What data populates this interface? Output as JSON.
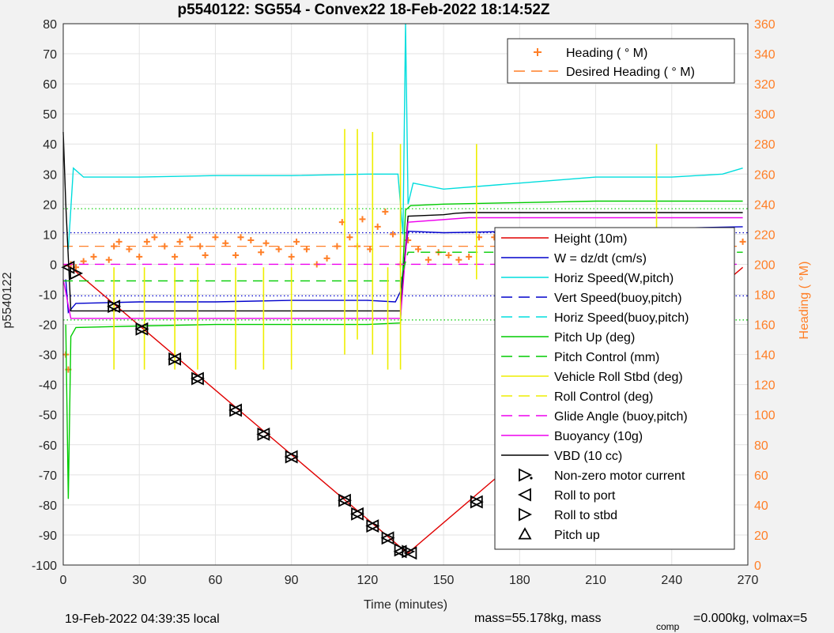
{
  "chart_data": {
    "type": "line",
    "title": "p5540122: SG554 - Convex22 18-Feb-2022 18:14:52Z",
    "xlabel": "Time (minutes)",
    "ylabel": "p5540122",
    "y2label": "Heading (  °M)",
    "xlim": [
      0,
      270
    ],
    "ylim": [
      -100,
      80
    ],
    "y2lim": [
      0,
      360
    ],
    "xticks": [
      "0",
      "30",
      "60",
      "90",
      "120",
      "150",
      "180",
      "210",
      "240",
      "270"
    ],
    "yticks": [
      "80",
      "70",
      "60",
      "50",
      "40",
      "30",
      "20",
      "10",
      "0",
      "-10",
      "-20",
      "-30",
      "-40",
      "-50",
      "-60",
      "-70",
      "-80",
      "-90",
      "-100"
    ],
    "y2ticks": [
      "360",
      "340",
      "320",
      "300",
      "280",
      "260",
      "240",
      "220",
      "200",
      "180",
      "160",
      "140",
      "120",
      "100",
      "80",
      "60",
      "40",
      "20",
      "0"
    ],
    "grid": true,
    "footer_left": "19-Feb-2022 04:39:35 local",
    "footer_right_a": "mass=55.178kg, mass",
    "footer_right_sub": "comp",
    "footer_right_b": "=0.000kg, volmax=5",
    "legend_top": [
      {
        "label": "Heading (  ° M)",
        "color": "#ff7f27",
        "style": "plus"
      },
      {
        "label": "Desired Heading (    ° M)",
        "color": "#ff7f27",
        "style": "dash"
      }
    ],
    "legend_main": [
      {
        "label": "Height (10m)",
        "color": "#e00000",
        "style": "solid"
      },
      {
        "label": "W = dz/dt (cm/s)",
        "color": "#0000cc",
        "style": "solid"
      },
      {
        "label": "Horiz Speed(W,pitch)",
        "color": "#00dddd",
        "style": "solid"
      },
      {
        "label": "Vert Speed(buoy,pitch)",
        "color": "#0000cc",
        "style": "dash"
      },
      {
        "label": "Horiz Speed(buoy,pitch)",
        "color": "#00dddd",
        "style": "dash"
      },
      {
        "label": "Pitch Up (deg)",
        "color": "#00cc00",
        "style": "solid"
      },
      {
        "label": "Pitch Control (mm)",
        "color": "#00cc00",
        "style": "dash"
      },
      {
        "label": "Vehicle Roll Stbd (deg)",
        "color": "#eeee00",
        "style": "solid"
      },
      {
        "label": "Roll Control (deg)",
        "color": "#eeee00",
        "style": "dash"
      },
      {
        "label": "Glide Angle (buoy,pitch)",
        "color": "#ee00ee",
        "style": "dash"
      },
      {
        "label": "Buoyancy (10g)",
        "color": "#ee00ee",
        "style": "solid"
      },
      {
        "label": "VBD (10 cc)",
        "color": "#000000",
        "style": "solid"
      },
      {
        "label": "Non-zero motor current",
        "color": "#000000",
        "style": "hexstar"
      },
      {
        "label": "Roll to port",
        "color": "#000000",
        "style": "tri-left"
      },
      {
        "label": "Roll to stbd",
        "color": "#000000",
        "style": "tri-right"
      },
      {
        "label": "Pitch up",
        "color": "#000000",
        "style": "tri-up"
      }
    ],
    "series": [
      {
        "key": "height",
        "color": "#e00000",
        "x": [
          0,
          3,
          135,
          136,
          268
        ],
        "y": [
          0,
          -1,
          -95.5,
          -96,
          -1
        ]
      },
      {
        "key": "w",
        "color": "#0000cc",
        "x": [
          1,
          2,
          5,
          30,
          60,
          90,
          110,
          120,
          131,
          133,
          136,
          150,
          180,
          210,
          240,
          268
        ],
        "y": [
          -5,
          -16,
          -13,
          -12.5,
          -12.5,
          -12,
          -12,
          -12,
          -12.5,
          -9,
          11,
          10.5,
          11,
          11.5,
          12,
          12.5
        ]
      },
      {
        "key": "horiz_speed",
        "color": "#00dddd",
        "x": [
          2,
          4,
          8,
          30,
          60,
          90,
          120,
          132,
          134,
          135,
          136,
          138,
          150,
          180,
          210,
          240,
          260,
          268
        ],
        "y": [
          5,
          32,
          29,
          29,
          29.5,
          29.5,
          30,
          30,
          10,
          80,
          20,
          27,
          25,
          27,
          29,
          29,
          30,
          32
        ]
      },
      {
        "key": "pitch_up",
        "color": "#00cc00",
        "x": [
          1,
          2,
          3,
          5,
          30,
          60,
          90,
          120,
          133,
          135,
          137,
          150,
          180,
          210,
          240,
          268
        ],
        "y": [
          -20,
          -78,
          -24,
          -21,
          -20.5,
          -20,
          -20,
          -20,
          -19.5,
          18,
          19.5,
          20,
          20.5,
          21,
          21,
          21
        ]
      },
      {
        "key": "vbd",
        "color": "#000000",
        "x": [
          0,
          1,
          3,
          133,
          136,
          150,
          155,
          160,
          180,
          268
        ],
        "y": [
          44,
          20,
          -15.5,
          -15.5,
          16,
          16.5,
          17,
          17.2,
          17.2,
          17.2
        ]
      },
      {
        "key": "buoyancy",
        "color": "#ee00ee",
        "x": [
          0,
          3,
          133,
          136,
          160,
          268
        ],
        "y": [
          -5,
          -18,
          -18,
          14,
          15.5,
          15.5
        ]
      },
      {
        "key": "glide_angle",
        "color": "#ee00ee",
        "dash": true,
        "x": [
          0,
          268
        ],
        "y": [
          0,
          0
        ]
      },
      {
        "key": "pitch_control",
        "color": "#00cc00",
        "dash": true,
        "x": [
          0,
          133,
          136,
          268
        ],
        "y": [
          -5.5,
          -5.5,
          4,
          4
        ]
      }
    ],
    "reference_lines": [
      {
        "y": 18.5,
        "color": "#00cc00"
      },
      {
        "y": -18.5,
        "color": "#00cc00"
      },
      {
        "y": 10.5,
        "color": "#0000cc"
      },
      {
        "y": -10.5,
        "color": "#0000cc"
      }
    ],
    "roll_spikes": {
      "color": "#eeee00",
      "x": [
        20,
        32,
        44,
        53,
        68,
        79,
        90,
        111,
        116,
        122,
        128,
        133,
        163,
        179,
        234
      ],
      "y_top": [
        -1,
        -1,
        -1,
        -1,
        -1,
        -1,
        -1,
        45,
        45,
        44,
        -1,
        40,
        40,
        -1,
        40
      ],
      "y_bottom": [
        -35,
        -35,
        -35,
        -35,
        -35,
        -35,
        -35,
        -30,
        -25,
        -30,
        -35,
        -35,
        -5,
        -20,
        -5
      ]
    },
    "heading_points": {
      "color": "#ff7f27",
      "x": [
        1,
        2,
        3,
        5,
        8,
        12,
        18,
        20,
        22,
        26,
        30,
        33,
        36,
        40,
        44,
        46,
        50,
        54,
        56,
        60,
        64,
        68,
        70,
        74,
        78,
        80,
        85,
        90,
        92,
        96,
        100,
        104,
        108,
        110,
        113,
        116,
        118,
        121,
        124,
        127,
        130,
        133,
        136,
        140,
        144,
        148,
        152,
        156,
        160,
        164,
        170,
        180,
        190,
        200,
        210,
        220,
        230,
        234,
        240,
        250,
        260,
        268
      ],
      "y": [
        140,
        130,
        200,
        198,
        202,
        205,
        203,
        212,
        215,
        210,
        205,
        215,
        218,
        212,
        205,
        215,
        218,
        212,
        206,
        218,
        214,
        206,
        218,
        216,
        208,
        214,
        210,
        205,
        215,
        210,
        200,
        204,
        212,
        228,
        218,
        212,
        230,
        210,
        225,
        235,
        220,
        200,
        216,
        210,
        203,
        208,
        206,
        203,
        205,
        218,
        218,
        217,
        216,
        214,
        216,
        215,
        214,
        205,
        220,
        214,
        212,
        215
      ]
    },
    "desired_heading": {
      "color": "#ff7f27",
      "x": [
        0,
        268
      ],
      "y": [
        212,
        212
      ]
    },
    "markers_roll_stbd": {
      "x": [
        5,
        20,
        31,
        44,
        53,
        68,
        79,
        90,
        111,
        116,
        122,
        128,
        133,
        136,
        163,
        179,
        203,
        234
      ],
      "y": [
        -3,
        -14,
        -21.5,
        -31.5,
        -38,
        -48.5,
        -56.5,
        -64,
        -78.5,
        -83,
        -87,
        -91,
        -95,
        -95.5,
        -79,
        -68.5,
        -50.5,
        -27
      ]
    },
    "markers_roll_port": {
      "x": [
        2,
        20,
        31,
        44,
        53,
        68,
        79,
        90,
        111,
        116,
        122,
        128,
        133,
        137,
        163,
        179,
        203,
        234
      ],
      "y": [
        -1,
        -14,
        -21.5,
        -31.5,
        -38,
        -48.5,
        -56.5,
        -64,
        -78.5,
        -83,
        -87,
        -91,
        -95.5,
        -96,
        -79,
        -68.5,
        -50.5,
        -27
      ]
    }
  }
}
